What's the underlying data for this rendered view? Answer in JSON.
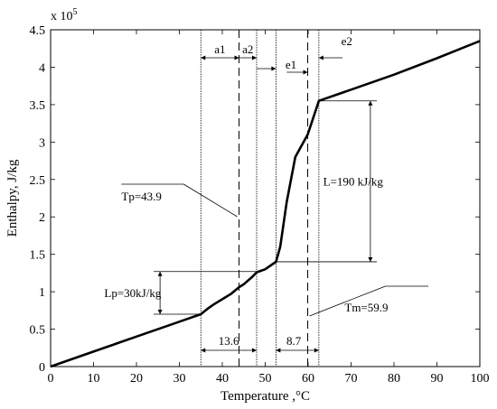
{
  "chart_data": {
    "type": "line",
    "xlabel": "Temperature ,°C",
    "ylabel": "Enthalpy, J/kg",
    "y_multiplier": "x 10",
    "y_multiplier_exp": "5",
    "xlim": [
      0,
      100
    ],
    "ylim": [
      0,
      4.5
    ],
    "x_ticks": [
      0,
      10,
      20,
      30,
      40,
      50,
      60,
      70,
      80,
      90,
      100
    ],
    "x_tick_labels": [
      "0",
      "10",
      "20",
      "30",
      "40",
      "50",
      "60",
      "70",
      "80",
      "90",
      "100"
    ],
    "y_ticks": [
      0,
      0.5,
      1,
      1.5,
      2,
      2.5,
      3,
      3.5,
      4,
      4.5
    ],
    "y_tick_labels": [
      "0",
      "0.5",
      "1",
      "1.5",
      "2",
      "2.5",
      "3",
      "3.5",
      "4",
      "4.5"
    ],
    "grid": false,
    "series": [
      {
        "x": [
          0,
          10,
          20,
          30,
          35,
          36.5,
          38,
          40,
          42,
          43.9,
          45,
          47,
          48,
          50,
          52.5,
          53.5,
          55,
          57,
          59.9,
          62.5,
          70,
          80,
          90,
          100
        ],
        "y": [
          0,
          0.2,
          0.4,
          0.6,
          0.7,
          0.77,
          0.83,
          0.9,
          0.97,
          1.06,
          1.1,
          1.2,
          1.26,
          1.3,
          1.4,
          1.6,
          2.2,
          2.8,
          3.1,
          3.55,
          3.7,
          3.9,
          4.12,
          4.35
        ]
      }
    ],
    "vertical_lines_solid": [
      35,
      48,
      52.5,
      62.5
    ],
    "vertical_lines_dashed": [
      43.9,
      59.9
    ],
    "annotations": {
      "a1": "a1",
      "a2": "a2",
      "e1": "e1",
      "e2": "e2",
      "tp": "Tp=43.9",
      "tm": "Tm=59.9",
      "latent": "L=190 kJ/kg",
      "lp": "Lp=30kJ/kg",
      "span1": "13.6",
      "span2": "8.7"
    }
  }
}
